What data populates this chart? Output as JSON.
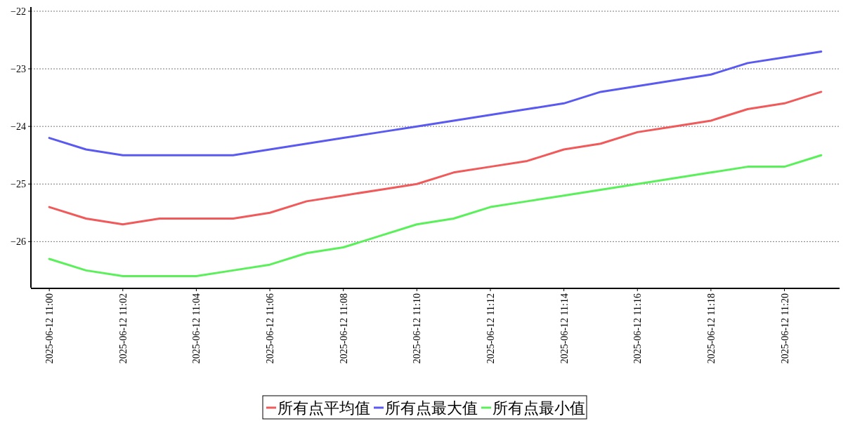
{
  "chart_data": {
    "type": "line",
    "x": [
      "2025-06-12T11:00",
      "2025-06-12T11:01",
      "2025-06-12T11:02",
      "2025-06-12T11:03",
      "2025-06-12T11:04",
      "2025-06-12T11:05",
      "2025-06-12T11:06",
      "2025-06-12T11:07",
      "2025-06-12T11:08",
      "2025-06-12T11:09",
      "2025-06-12T11:10",
      "2025-06-12T11:11",
      "2025-06-12T11:12",
      "2025-06-12T11:13",
      "2025-06-12T11:14",
      "2025-06-12T11:15",
      "2025-06-12T11:16",
      "2025-06-12T11:17",
      "2025-06-12T11:18",
      "2025-06-12T11:19",
      "2025-06-12T11:20",
      "2025-06-12T11:21"
    ],
    "series": [
      {
        "name": "所有点平均值",
        "color": "#f05a5a",
        "values": [
          -25.4,
          -25.6,
          -25.7,
          -25.6,
          -25.6,
          -25.6,
          -25.5,
          -25.3,
          -25.2,
          -25.1,
          -25.0,
          -24.8,
          -24.7,
          -24.6,
          -24.4,
          -24.3,
          -24.1,
          -24.0,
          -23.9,
          -23.7,
          -23.6,
          -23.4
        ]
      },
      {
        "name": "所有点最大值",
        "color": "#5a5af0",
        "values": [
          -24.2,
          -24.4,
          -24.5,
          -24.5,
          -24.5,
          -24.5,
          -24.4,
          -24.3,
          -24.2,
          -24.1,
          -24.0,
          -23.9,
          -23.8,
          -23.7,
          -23.6,
          -23.4,
          -23.3,
          -23.2,
          -23.1,
          -22.9,
          -22.8,
          -22.7
        ]
      },
      {
        "name": "所有点最小值",
        "color": "#5af05a",
        "values": [
          -26.3,
          -26.5,
          -26.6,
          -26.6,
          -26.6,
          -26.5,
          -26.4,
          -26.2,
          -26.1,
          -25.9,
          -25.7,
          -25.6,
          -25.4,
          -25.3,
          -25.2,
          -25.1,
          -25.0,
          -24.9,
          -24.8,
          -24.7,
          -24.7,
          -24.5
        ]
      }
    ],
    "xlim": [
      "2025-06-12T10:59:30",
      "2025-06-12T11:21:30"
    ],
    "xticks": [
      {
        "value": "2025-06-12T11:00",
        "label": "2025-06-12 11:00"
      },
      {
        "value": "2025-06-12T11:02",
        "label": "2025-06-12 11:02"
      },
      {
        "value": "2025-06-12T11:04",
        "label": "2025-06-12 11:04"
      },
      {
        "value": "2025-06-12T11:06",
        "label": "2025-06-12 11:06"
      },
      {
        "value": "2025-06-12T11:08",
        "label": "2025-06-12 11:08"
      },
      {
        "value": "2025-06-12T11:10",
        "label": "2025-06-12 11:10"
      },
      {
        "value": "2025-06-12T11:12",
        "label": "2025-06-12 11:12"
      },
      {
        "value": "2025-06-12T11:14",
        "label": "2025-06-12 11:14"
      },
      {
        "value": "2025-06-12T11:16",
        "label": "2025-06-12 11:16"
      },
      {
        "value": "2025-06-12T11:18",
        "label": "2025-06-12 11:18"
      },
      {
        "value": "2025-06-12T11:20",
        "label": "2025-06-12 11:20"
      }
    ],
    "ylim": [
      -26.8,
      -22
    ],
    "yticks": [
      -26,
      -25,
      -24,
      -23,
      -22
    ],
    "grid": "y",
    "legend": "bottom",
    "marker": "none",
    "line_style": "solid"
  }
}
